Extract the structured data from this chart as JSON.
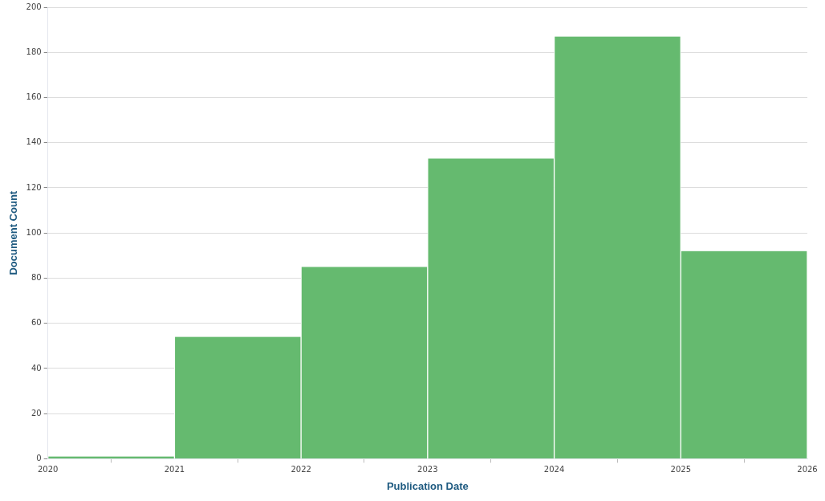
{
  "chart_data": {
    "type": "histogram",
    "xlabel": "Publication Date",
    "ylabel": "Document Count",
    "bins": [
      2020,
      2021,
      2022,
      2023,
      2024,
      2025,
      2026
    ],
    "values": [
      1,
      54,
      85,
      133,
      187,
      92
    ],
    "color": "#65ba6f",
    "xlim": [
      2020,
      2026
    ],
    "xticks": [
      2020,
      2021,
      2022,
      2023,
      2024,
      2025,
      2026
    ],
    "ylim": [
      0,
      200
    ],
    "yticks": [
      0,
      20,
      40,
      60,
      80,
      100,
      120,
      140,
      160,
      180,
      200
    ],
    "grid": "y",
    "legend": false
  }
}
